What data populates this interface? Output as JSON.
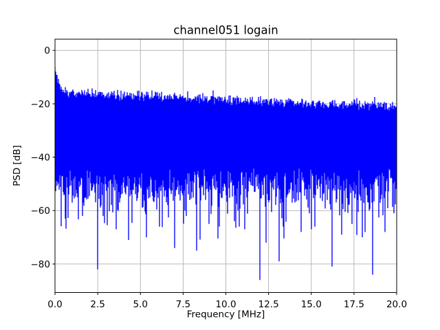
{
  "figure": {
    "background_color": "#ffffff"
  },
  "chart_data": {
    "type": "line",
    "title": "channel051 logain",
    "xlabel": "Frequency [MHz]",
    "ylabel": "PSD [dB]",
    "xlim": [
      0,
      20
    ],
    "ylim": [
      -90.7,
      4.2
    ],
    "grid": true,
    "grid_color": "#b0b0b0",
    "spine_color": "#000000",
    "line_color": "#0000ff",
    "xticks": [
      {
        "value": 0,
        "label": "0.0"
      },
      {
        "value": 2.5,
        "label": "2.5"
      },
      {
        "value": 5,
        "label": "5.0"
      },
      {
        "value": 7.5,
        "label": "7.5"
      },
      {
        "value": 10,
        "label": "10.0"
      },
      {
        "value": 12.5,
        "label": "12.5"
      },
      {
        "value": 15,
        "label": "15.0"
      },
      {
        "value": 17.5,
        "label": "17.5"
      },
      {
        "value": 20,
        "label": "20.0"
      }
    ],
    "yticks": [
      {
        "value": 0,
        "label": "0"
      },
      {
        "value": -20,
        "label": "−20"
      },
      {
        "value": -40,
        "label": "−40"
      },
      {
        "value": -60,
        "label": "−60"
      },
      {
        "value": -80,
        "label": "−80"
      }
    ],
    "series_description": "Broadband noise power spectral density, solid band from a ragged top envelope (about -15 dB at 0 MHz declining to about -21 dB at 20 MHz) down to about -44..-58 dB, with sparse downward spikes",
    "noise_model": {
      "seed": 1337,
      "columns": 498,
      "top_envelope_start_db": -15.8,
      "top_envelope_end_db": -21.0,
      "top_jitter_db": 2.2,
      "dc_transient_peak_db": -6.3,
      "dc_transient_decay_mhz": 0.25,
      "dc_transient_boost_db": 9.5,
      "body_bottom_base_min_db": -44,
      "body_bottom_base_max_db": -54,
      "tail_scale_db": 4.2,
      "tail_clamp_db": -76
    },
    "major_dips": [
      {
        "f": 0.6,
        "db": -63
      },
      {
        "f": 1.0,
        "db": -57
      },
      {
        "f": 1.6,
        "db": -62
      },
      {
        "f": 2.5,
        "db": -82
      },
      {
        "f": 2.8,
        "db": -62
      },
      {
        "f": 3.6,
        "db": -67
      },
      {
        "f": 4.3,
        "db": -71
      },
      {
        "f": 5.35,
        "db": -70
      },
      {
        "f": 6.1,
        "db": -66
      },
      {
        "f": 7.0,
        "db": -74
      },
      {
        "f": 7.7,
        "db": -62
      },
      {
        "f": 8.3,
        "db": -75
      },
      {
        "f": 9.0,
        "db": -65
      },
      {
        "f": 9.6,
        "db": -63
      },
      {
        "f": 10.5,
        "db": -64
      },
      {
        "f": 10.8,
        "db": -66
      },
      {
        "f": 11.1,
        "db": -67
      },
      {
        "f": 12.0,
        "db": -86
      },
      {
        "f": 12.35,
        "db": -72
      },
      {
        "f": 13.1,
        "db": -79
      },
      {
        "f": 13.35,
        "db": -66
      },
      {
        "f": 14.4,
        "db": -68
      },
      {
        "f": 15.0,
        "db": -67
      },
      {
        "f": 15.2,
        "db": -66
      },
      {
        "f": 16.2,
        "db": -81
      },
      {
        "f": 16.8,
        "db": -69
      },
      {
        "f": 17.4,
        "db": -65
      },
      {
        "f": 18.0,
        "db": -70
      },
      {
        "f": 18.6,
        "db": -84
      },
      {
        "f": 19.3,
        "db": -68
      },
      {
        "f": 19.85,
        "db": -61
      }
    ]
  }
}
